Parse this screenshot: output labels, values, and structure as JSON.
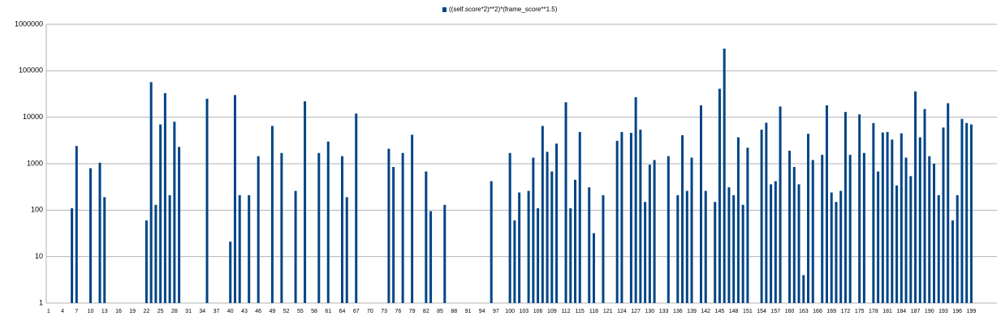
{
  "chart_data": {
    "type": "bar",
    "categories": [
      "1",
      null,
      null,
      "4",
      null,
      null,
      "7",
      null,
      null,
      "10",
      null,
      null,
      "13",
      null,
      null,
      "16",
      null,
      null,
      "19",
      null,
      null,
      "22",
      null,
      null,
      "25",
      null,
      null,
      "28",
      null,
      null,
      "31",
      null,
      null,
      "34",
      null,
      null,
      "37",
      null,
      null,
      "40",
      null,
      null,
      "43",
      null,
      null,
      "46",
      null,
      null,
      "49",
      null,
      null,
      "52",
      null,
      null,
      "55",
      null,
      null,
      "58",
      null,
      null,
      "61",
      null,
      null,
      "64",
      null,
      null,
      "67",
      null,
      null,
      "70",
      null,
      null,
      "73",
      null,
      null,
      "76",
      null,
      null,
      "79",
      null,
      null,
      "82",
      null,
      null,
      "85",
      null,
      null,
      "88",
      null,
      null,
      "91",
      null,
      null,
      "94",
      null,
      null,
      "97",
      null,
      null,
      "100",
      null,
      null,
      "103",
      null,
      null,
      "106",
      null,
      null,
      "109",
      null,
      null,
      "112",
      null,
      null,
      "115",
      null,
      null,
      "118",
      null,
      null,
      "121",
      null,
      null,
      "124",
      null,
      null,
      "127",
      null,
      null,
      "130",
      null,
      null,
      "133",
      null,
      null,
      "136",
      null,
      null,
      "139",
      null,
      null,
      "142",
      null,
      null,
      "145",
      null,
      null,
      "148",
      null,
      null,
      "151",
      null,
      null,
      "154",
      null,
      null,
      "157",
      null,
      null,
      "160",
      null,
      null,
      "163",
      null,
      null,
      "166",
      null,
      null,
      "169",
      null,
      null,
      "172",
      null,
      null,
      "175",
      null,
      null,
      "178",
      null,
      null,
      "181",
      null,
      null,
      "184",
      null,
      null,
      "187",
      null,
      null,
      "190",
      null,
      null,
      "193",
      null,
      null,
      "196",
      null,
      null,
      "199",
      null,
      null,
      null,
      null,
      null
    ],
    "series": [
      {
        "name": "((self.score*2)**2)*(frame_score**1.5)",
        "color": "#004586",
        "values": [
          null,
          null,
          null,
          null,
          null,
          110,
          2400,
          null,
          null,
          800,
          null,
          1050,
          190,
          null,
          null,
          null,
          null,
          null,
          null,
          null,
          null,
          60,
          57000,
          130,
          7000,
          33000,
          210,
          8000,
          2300,
          null,
          null,
          null,
          null,
          null,
          25000,
          null,
          null,
          null,
          null,
          21,
          30000,
          210,
          null,
          210,
          null,
          1450,
          null,
          null,
          6500,
          null,
          1700,
          null,
          null,
          260,
          null,
          22000,
          null,
          null,
          1700,
          null,
          3000,
          null,
          null,
          1450,
          190,
          null,
          12000,
          null,
          null,
          null,
          null,
          null,
          null,
          2100,
          850,
          null,
          1700,
          null,
          4200,
          null,
          null,
          680,
          95,
          null,
          null,
          130,
          null,
          null,
          null,
          null,
          null,
          null,
          null,
          null,
          null,
          420,
          null,
          null,
          null,
          1700,
          60,
          240,
          null,
          260,
          1350,
          110,
          6500,
          1800,
          680,
          2700,
          null,
          21000,
          110,
          450,
          4800,
          null,
          310,
          32,
          null,
          210,
          null,
          null,
          3100,
          4800,
          null,
          4600,
          27000,
          5400,
          150,
          950,
          1200,
          null,
          null,
          1450,
          null,
          210,
          4100,
          260,
          1350,
          null,
          18000,
          260,
          null,
          150,
          41000,
          300000,
          310,
          210,
          3700,
          130,
          2200,
          null,
          null,
          5400,
          7600,
          360,
          420,
          17000,
          null,
          1900,
          850,
          360,
          4,
          4400,
          1200,
          null,
          1550,
          18000,
          240,
          150,
          260,
          13000,
          1550,
          null,
          11500,
          1700,
          null,
          7500,
          680,
          4700,
          4800,
          3300,
          340,
          4500,
          1350,
          540,
          36000,
          3700,
          15000,
          1450,
          1000,
          210,
          6000,
          20000,
          60,
          210,
          9200,
          7500,
          7000,
          null,
          null,
          null,
          null,
          null
        ]
      }
    ],
    "ylim": [
      1,
      1000000
    ],
    "yticks": [
      1,
      10,
      100,
      1000,
      10000,
      100000,
      1000000
    ],
    "log_y": true,
    "grid": true,
    "legend": "top"
  }
}
